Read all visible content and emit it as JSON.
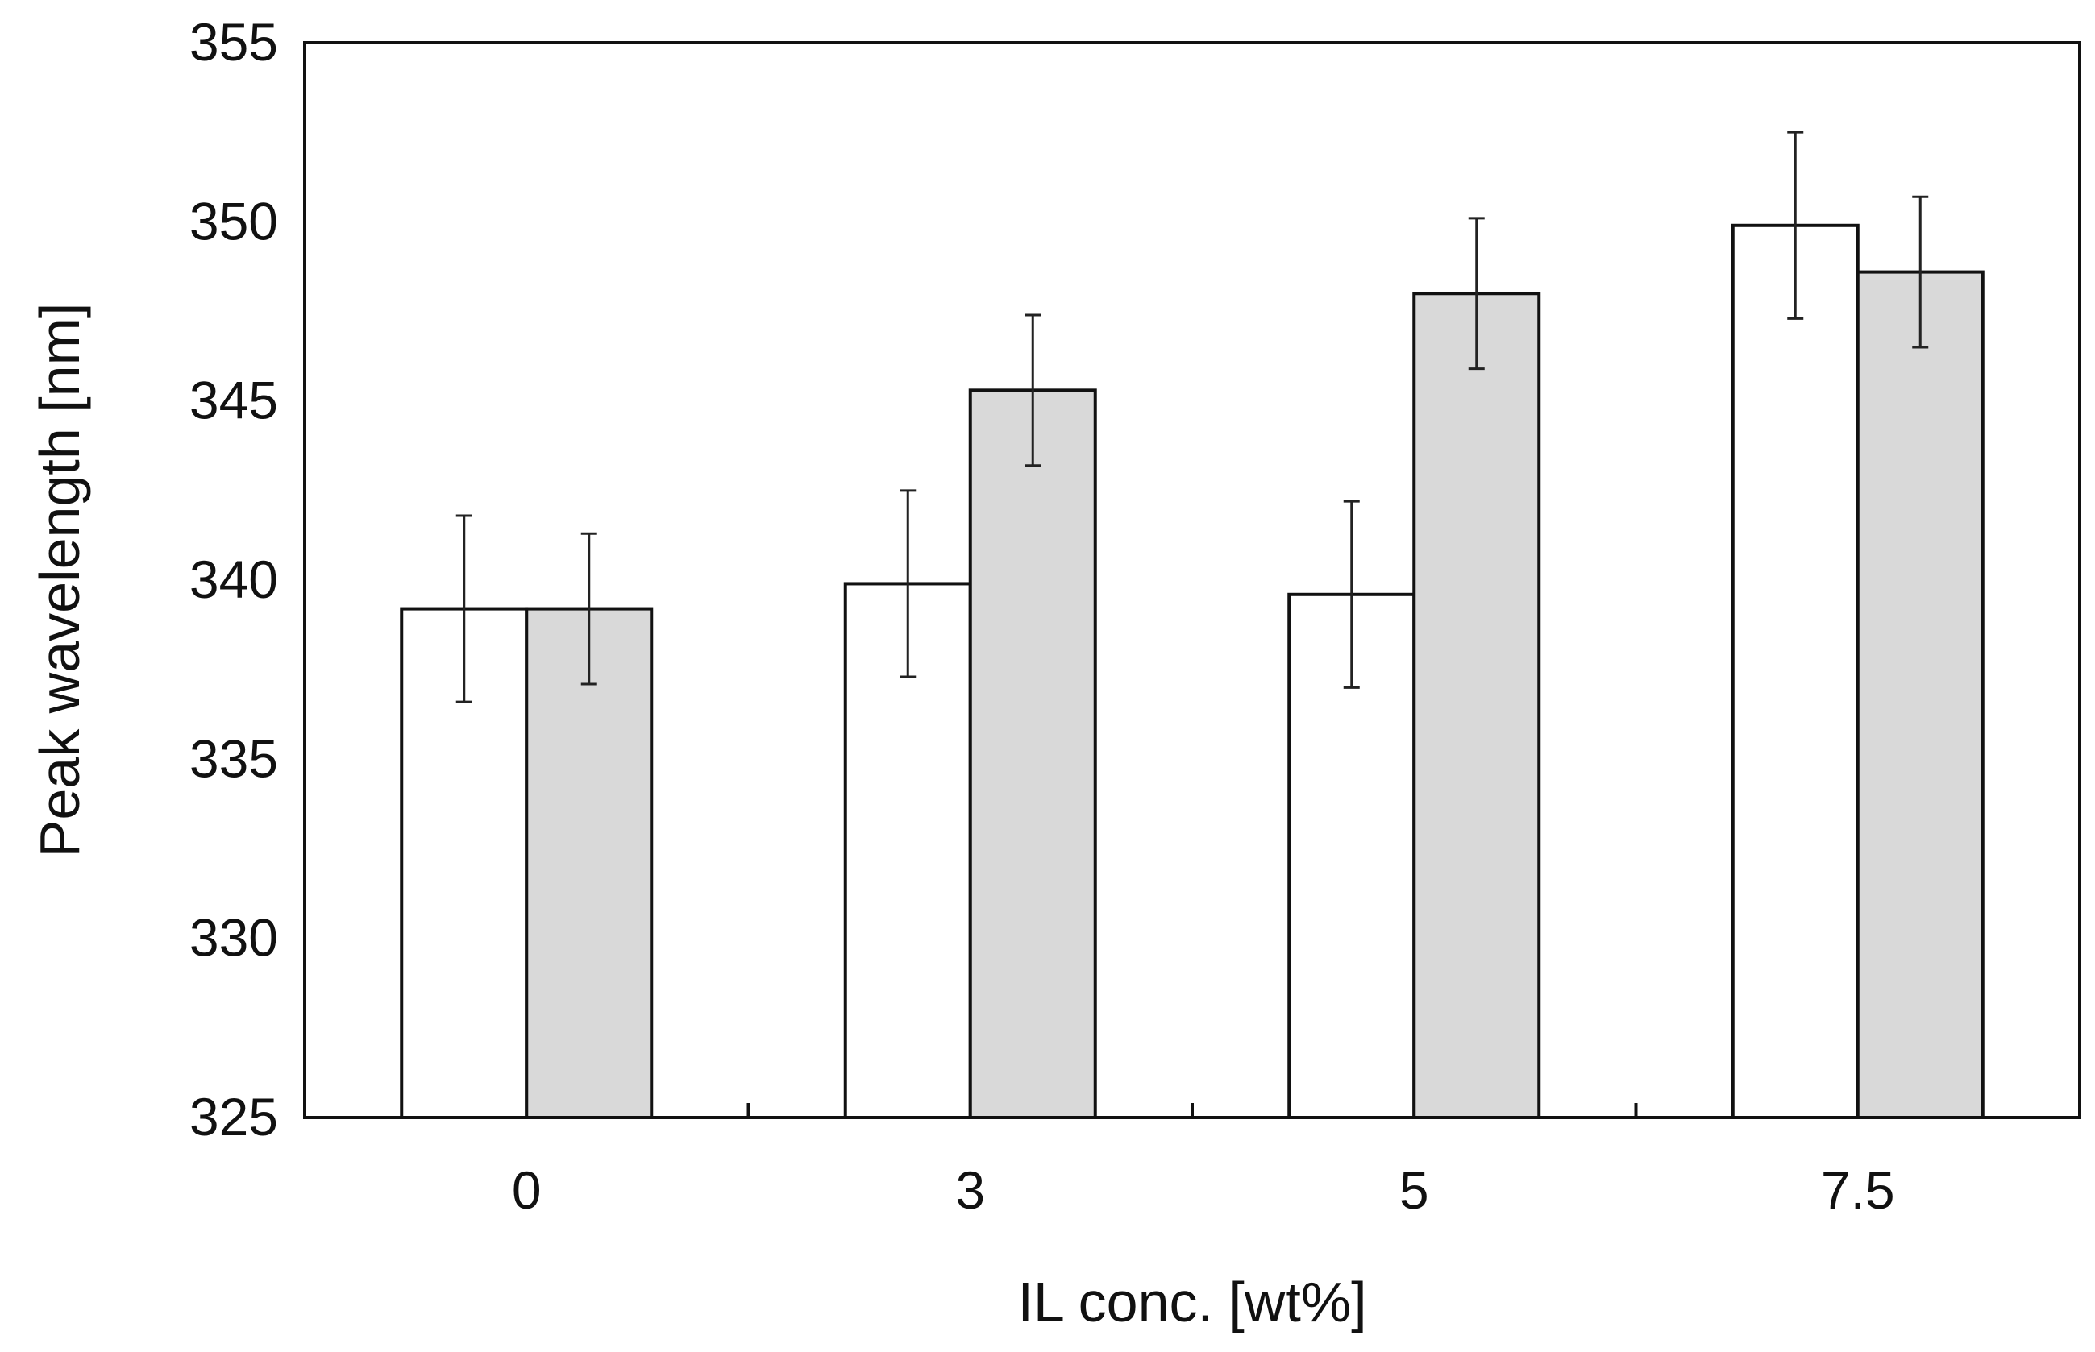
{
  "chart_data": {
    "type": "bar",
    "title": "",
    "xlabel": "IL conc. [wt%]",
    "ylabel": "Peak wavelength [nm]",
    "categories": [
      "0",
      "3",
      "5",
      "7.5"
    ],
    "ylim": [
      325,
      355
    ],
    "yticks": [
      "325",
      "330",
      "335",
      "340",
      "345",
      "350",
      "355"
    ],
    "grid": false,
    "legend": "none",
    "series": [
      {
        "color": "#ffffff",
        "values": [
          339.2,
          339.9,
          339.6,
          349.9
        ],
        "errors": [
          2.6,
          2.6,
          2.6,
          2.6
        ]
      },
      {
        "color": "#d9d9d9",
        "values": [
          339.2,
          345.3,
          348.0,
          348.6
        ],
        "errors": [
          2.1,
          2.1,
          2.1,
          2.1
        ]
      }
    ]
  }
}
